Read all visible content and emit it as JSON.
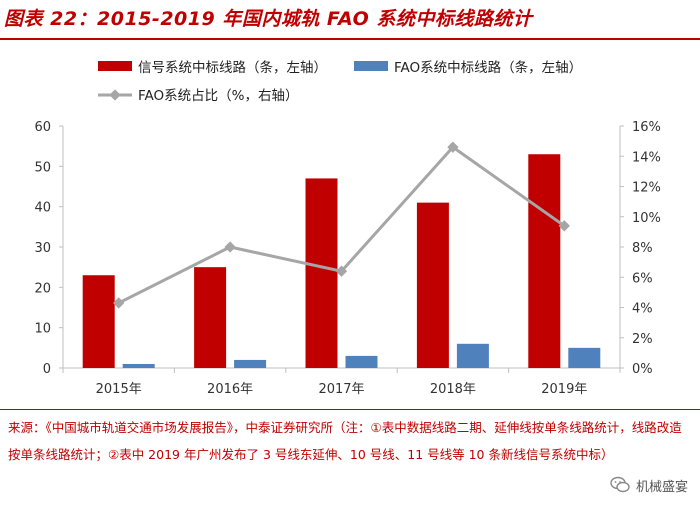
{
  "title": "图表 22：2015-2019 年国内城轨 FAO 系统中标线路统计",
  "source": "来源：《中国城市轨道交通市场发展报告》，中泰证券研究所（注：①表中数据线路二期、延伸线按单条线路统计，线路改造按单条线路统计；②表中 2019 年广州发布了 3 号线东延伸、10 号线、11 号线等 10 条新线信号系统中标）",
  "watermark": "机械盛宴",
  "colors": {
    "title": "#c00000",
    "signal": "#c00000",
    "fao": "#4f81bd",
    "ratio": "#a6a6a6",
    "axis": "#bfbfbf"
  },
  "chart_data": {
    "type": "bar",
    "categories": [
      "2015年",
      "2016年",
      "2017年",
      "2018年",
      "2019年"
    ],
    "series": [
      {
        "name": "信号系统中标线路（条，左轴）",
        "type": "bar",
        "axis": "left",
        "values": [
          23,
          25,
          47,
          41,
          53
        ]
      },
      {
        "name": "FAO系统中标线路（条，左轴）",
        "type": "bar",
        "axis": "left",
        "values": [
          1,
          2,
          3,
          6,
          5
        ]
      },
      {
        "name": "FAO系统占比（%，右轴）",
        "type": "line",
        "axis": "right",
        "values": [
          4.3,
          8.0,
          6.4,
          14.6,
          9.4
        ]
      }
    ],
    "y_left": {
      "min": 0,
      "max": 60,
      "ticks": [
        "0",
        "10",
        "20",
        "30",
        "40",
        "50",
        "60"
      ]
    },
    "y_right": {
      "min": 0,
      "max": 16,
      "ticks": [
        "0%",
        "2%",
        "4%",
        "6%",
        "8%",
        "10%",
        "12%",
        "14%",
        "16%"
      ]
    },
    "legend_position": "top",
    "grid": false
  }
}
